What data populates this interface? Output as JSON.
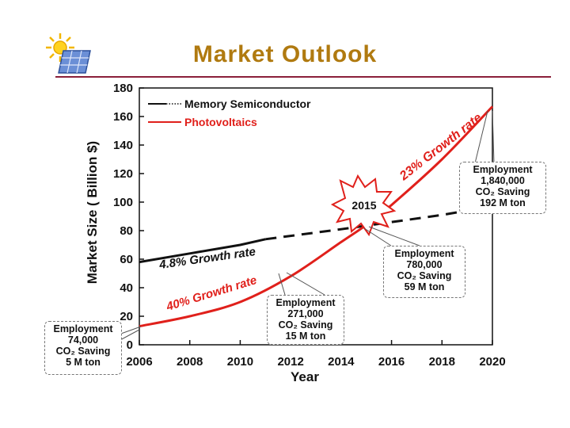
{
  "page": {
    "title": "Market Outlook"
  },
  "icon": "sun-solar-panel-icon",
  "colors": {
    "title": "#b07a10",
    "rule": "#8b1f3a",
    "photovoltaics": "#e0201b",
    "memory": "#111111"
  },
  "chart_data": {
    "type": "line",
    "xlabel": "Year",
    "ylabel": "Market Size ( Billion $)",
    "xlim": [
      2006,
      2020
    ],
    "ylim": [
      0,
      180
    ],
    "xticks": [
      2006,
      2008,
      2010,
      2012,
      2014,
      2016,
      2018,
      2020
    ],
    "yticks": [
      0,
      20,
      40,
      60,
      80,
      100,
      120,
      140,
      160,
      180
    ],
    "series": [
      {
        "name": "Memory Semiconductor",
        "color": "#111111",
        "solid": {
          "x": [
            2006,
            2008,
            2010,
            2011
          ],
          "y": [
            58,
            64,
            70,
            74
          ]
        },
        "dashed": {
          "x": [
            2011,
            2014,
            2016,
            2018,
            2019.3
          ],
          "y": [
            74,
            81,
            86,
            91,
            95
          ]
        }
      },
      {
        "name": "Photovoltaics",
        "color": "#e0201b",
        "x": [
          2006,
          2008,
          2010,
          2012,
          2014,
          2015,
          2016,
          2018,
          2020
        ],
        "y": [
          13,
          20,
          30,
          48,
          72,
          84,
          98,
          130,
          167
        ]
      }
    ],
    "annotations": {
      "memory_rate": "4.8% Growth rate",
      "pv_rate_early": "40% Growth rate",
      "pv_rate_late": "23% Growth rate",
      "burst": "2015",
      "boxes": [
        {
          "label": "Employment",
          "employment": "74,000",
          "saving": "CO₂ Saving",
          "tons": "5 M ton",
          "year": 2006
        },
        {
          "label": "Employment",
          "employment": "271,000",
          "saving": "CO₂ Saving",
          "tons": "15 M ton",
          "year": 2012
        },
        {
          "label": "Employment",
          "employment": "780,000",
          "saving": "CO₂ Saving",
          "tons": "59 M ton",
          "year": 2015
        },
        {
          "label": "Employment",
          "employment": "1,840,000",
          "saving": "CO₂ Saving",
          "tons": "192 M ton",
          "year": 2020
        }
      ]
    }
  }
}
